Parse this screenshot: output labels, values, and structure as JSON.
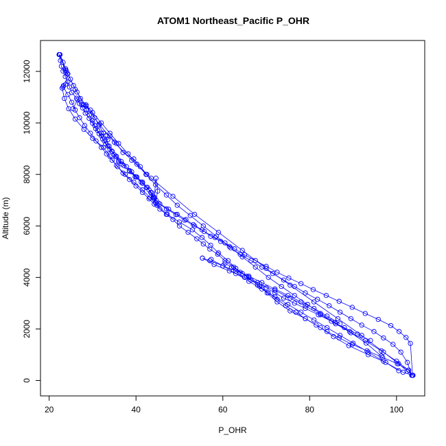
{
  "chart_data": {
    "type": "line",
    "title": "ATOM1 Northeast_Pacific P_OHR",
    "xlabel": "P_OHR",
    "ylabel": "Altitude (m)",
    "xlim": [
      18,
      106.5
    ],
    "ylim": [
      -600,
      13200
    ],
    "xticks": [
      20,
      40,
      60,
      80,
      100
    ],
    "yticks": [
      0,
      2000,
      4000,
      6000,
      8000,
      10000,
      12000
    ],
    "series_color": "#0000ff",
    "grid": false,
    "series": [
      {
        "x": [
          22.3,
          22.6,
          22.8,
          23.2,
          23.7,
          24.3,
          24.7,
          25.2,
          26.3,
          27.0,
          27.7,
          28.3,
          29.2,
          30.0,
          30.7,
          31.5,
          32.3,
          33.0,
          34.0,
          35.0,
          36.0,
          37.2,
          38.5,
          39.8,
          41.2,
          42.4,
          43.6,
          44.3,
          45.2,
          47.0,
          49.2,
          51.2,
          53.5,
          55.7,
          58.2,
          60.5,
          62.7,
          65.0,
          67.5,
          70.0,
          72.5,
          75.2,
          78.0,
          80.8,
          83.8,
          86.8,
          89.8,
          92.8,
          95.8,
          98.7,
          100.6,
          102.2,
          103.2,
          103.7
        ],
        "y": [
          12650,
          12420,
          12200,
          12010,
          11800,
          11600,
          11390,
          11180,
          10960,
          10750,
          10580,
          10380,
          10180,
          9990,
          9780,
          9580,
          9380,
          9180,
          8970,
          8760,
          8550,
          8340,
          8120,
          7910,
          7700,
          7490,
          7290,
          7080,
          6880,
          6660,
          6440,
          6220,
          6000,
          5780,
          5550,
          5340,
          5110,
          4880,
          4660,
          4430,
          4200,
          3980,
          3760,
          3530,
          3300,
          3070,
          2840,
          2600,
          2370,
          2130,
          1900,
          1670,
          1440,
          200
        ]
      },
      {
        "x": [
          103.7,
          101.5,
          97.5,
          93.5,
          89.0,
          85.5,
          82.5,
          79.0,
          75.5,
          72.5,
          70.2,
          68.0,
          65.5,
          63.0,
          61.2,
          59.0,
          57.2,
          55.2,
          53.0,
          50.0,
          47.2,
          44.8,
          43.2,
          41.5,
          39.5,
          37.5,
          35.5,
          34.0,
          32.5,
          30.0,
          28.0,
          26.0,
          24.5,
          23.5,
          23.0,
          23.3,
          23.8,
          24.2,
          23.8,
          22.4
        ],
        "y": [
          200,
          320,
          700,
          1000,
          1350,
          1700,
          2050,
          2400,
          2700,
          3050,
          3400,
          3700,
          4050,
          4350,
          4650,
          4950,
          5250,
          5550,
          5850,
          6150,
          6450,
          6800,
          7100,
          7400,
          7700,
          8000,
          8350,
          8700,
          9050,
          9400,
          9750,
          10150,
          10550,
          10950,
          11350,
          11450,
          11500,
          11900,
          12050,
          12650
        ]
      },
      {
        "x": [
          22.5,
          23.2,
          23.8,
          24.3,
          24.9,
          25.6,
          26.4,
          27.2,
          28.0,
          28.6,
          29.3,
          29.9,
          30.5,
          31.2,
          32.0,
          32.7,
          33.5,
          34.4,
          35.5,
          36.6,
          37.8,
          39.0,
          40.2,
          41.5,
          42.6,
          43.4,
          44.0,
          44.6,
          45.5,
          47.5,
          49.5,
          51.5,
          53.2,
          55.2,
          57.2,
          59.5,
          61.8,
          64.0,
          66.5,
          69.0,
          71.5,
          74.0,
          76.5,
          79.0,
          81.8,
          84.5,
          87.0,
          89.5,
          92.0,
          94.8,
          97.0,
          99.2,
          101.0,
          102.5,
          103.5
        ],
        "y": [
          12650,
          12350,
          12100,
          11900,
          11700,
          11450,
          11200,
          10950,
          10700,
          10500,
          10300,
          10100,
          9900,
          9700,
          9500,
          9300,
          9100,
          8900,
          8700,
          8500,
          8300,
          8100,
          7900,
          7700,
          7500,
          7300,
          7150,
          7000,
          6850,
          6650,
          6450,
          6250,
          6050,
          5850,
          5600,
          5400,
          5150,
          4900,
          4650,
          4400,
          4150,
          3900,
          3650,
          3400,
          3150,
          2900,
          2650,
          2400,
          2150,
          1900,
          1650,
          1400,
          1100,
          700,
          200
        ]
      },
      {
        "x": [
          103.6,
          102.8,
          100.2,
          96.8,
          93.2,
          89.8,
          86.8,
          84.0,
          81.5,
          79.0,
          76.8,
          74.5,
          72.5,
          70.5,
          68.5,
          66.5,
          64.5,
          62.5,
          60.5,
          58.8,
          57.0,
          55.5,
          54.0,
          52.0,
          50.0,
          48.5,
          47.0,
          45.5,
          44.2,
          43.0,
          41.5,
          40.0,
          38.5,
          37.0,
          35.8,
          34.5,
          33.2,
          32.0,
          30.8,
          29.5,
          28.2,
          27.0,
          26.0,
          25.2,
          24.3,
          23.2
        ],
        "y": [
          200,
          400,
          650,
          900,
          1150,
          1400,
          1650,
          1900,
          2150,
          2400,
          2650,
          2900,
          3150,
          3400,
          3650,
          3900,
          4150,
          4400,
          4650,
          4900,
          5100,
          5300,
          5500,
          5750,
          6000,
          6250,
          6450,
          6650,
          6850,
          7050,
          7300,
          7550,
          7800,
          8050,
          8300,
          8550,
          8800,
          9050,
          9300,
          9600,
          9900,
          10200,
          10500,
          10800,
          11100,
          11400
        ]
      },
      {
        "x": [
          28.5,
          30.0,
          32.0,
          34.0,
          36.0,
          38.2,
          40.2,
          42.3,
          44.5,
          47.0,
          49.5,
          52.5,
          55.5,
          58.5,
          61.5,
          64.5,
          67.5,
          70.5,
          73.5,
          76.5,
          79.5,
          82.5,
          85.8,
          89.2,
          92.8,
          96.5,
          100.0,
          102.8,
          103.6
        ],
        "y": [
          10700,
          10400,
          10000,
          9600,
          9200,
          8800,
          8400,
          8000,
          7600,
          7200,
          6800,
          6400,
          6000,
          5600,
          5200,
          4800,
          4400,
          4000,
          3650,
          3300,
          2950,
          2600,
          2250,
          1900,
          1550,
          1150,
          750,
          400,
          200
        ]
      },
      {
        "x": [
          22.3,
          24.0,
          26.0,
          28.5,
          31.5,
          35.0,
          39.0,
          43.5,
          48.5,
          53.5,
          59.0,
          64.5,
          70.0,
          75.5,
          81.0,
          86.5,
          92.0,
          97.0,
          100.5,
          102.5,
          103.8
        ],
        "y": [
          12650,
          12000,
          11300,
          10650,
          9950,
          9250,
          8550,
          7850,
          7150,
          6450,
          5750,
          5050,
          4350,
          3700,
          3050,
          2400,
          1750,
          1100,
          650,
          350,
          200
        ]
      },
      {
        "x": [
          38.5,
          40.0,
          41.5,
          43.0,
          44.0,
          44.5,
          45.0,
          44.6,
          44.2
        ],
        "y": [
          8150,
          7900,
          7650,
          7400,
          7100,
          6900,
          7350,
          7850,
          7100
        ]
      },
      {
        "x": [
          55.3,
          57.0,
          60.0,
          63.0,
          66.0,
          69.0,
          72.0,
          75.0,
          78.0,
          81.0,
          84.0,
          87.0
        ],
        "y": [
          4750,
          4650,
          4450,
          4250,
          4050,
          3800,
          3550,
          3300,
          3050,
          2800,
          2500,
          2200
        ]
      },
      {
        "x": [
          60.5,
          62.0,
          64.0,
          66.0,
          68.0,
          70.0,
          72.0,
          74.0,
          76.5,
          79.0,
          82.0,
          85.0,
          88.0,
          91.0,
          94.0
        ],
        "y": [
          4550,
          4400,
          4200,
          4000,
          3800,
          3600,
          3400,
          3200,
          3000,
          2800,
          2550,
          2300,
          2050,
          1800,
          1550
        ]
      },
      {
        "x": [
          32.0,
          33.5,
          34.0,
          35.5,
          37.0,
          39.5,
          41.0,
          42.5
        ],
        "y": [
          9600,
          9350,
          9500,
          9200,
          8850,
          8600,
          8300,
          8000
        ]
      },
      {
        "x": [
          55.3,
          58.0,
          61.5,
          65.0,
          68.5,
          72.0,
          75.5,
          79.0,
          82.5,
          86.0,
          89.5,
          93.0,
          96.5
        ],
        "y": [
          4750,
          4500,
          4250,
          4000,
          3750,
          3500,
          3200,
          2900,
          2550,
          2200,
          1850,
          1450,
          950
        ]
      },
      {
        "x": [
          57.3,
          60.0,
          63.0,
          66.0,
          69.0,
          72.0,
          75.0,
          78.0,
          81.0,
          84.0,
          87.0,
          90.0,
          93.5,
          97.0,
          100.5
        ],
        "y": [
          4700,
          4450,
          4150,
          3850,
          3550,
          3250,
          2950,
          2650,
          2350,
          2050,
          1750,
          1450,
          1100,
          750,
          380
        ]
      },
      {
        "x": [
          25.5,
          26.5,
          27.5,
          28.5,
          29.5,
          30.5,
          31.5,
          32.5
        ],
        "y": [
          10550,
          10900,
          10700,
          10650,
          10500,
          10200,
          9900,
          9600
        ]
      },
      {
        "x": [
          33.0,
          33.8,
          34.5,
          35.3,
          36.0,
          36.8
        ],
        "y": [
          9500,
          9100,
          8900,
          8700,
          8500,
          8400
        ]
      }
    ]
  }
}
